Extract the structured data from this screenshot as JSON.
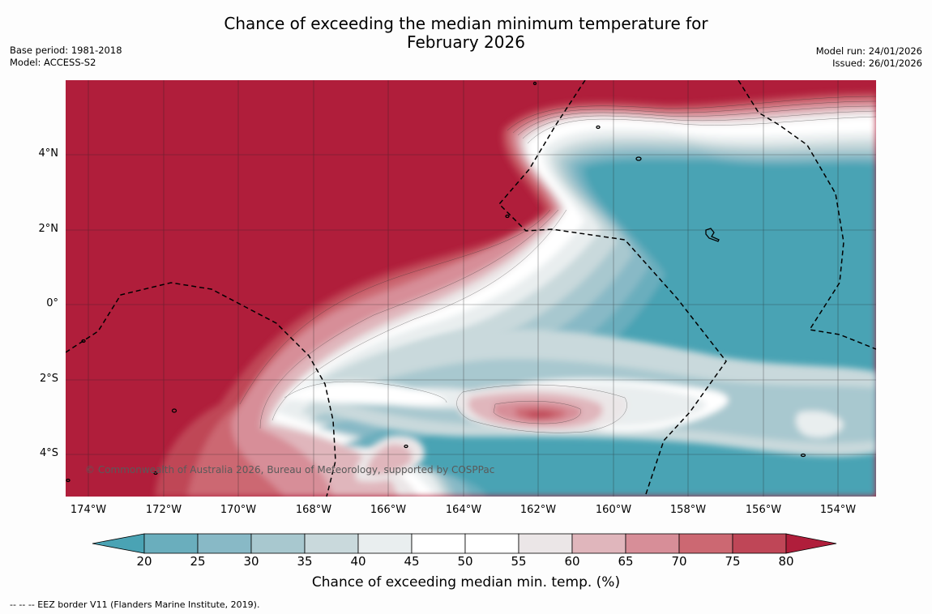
{
  "title": {
    "line1": "Chance of exceeding the median minimum temperature for",
    "line2": "February 2026"
  },
  "meta_left": {
    "base_period": "Base period: 1981-2018",
    "model": "Model: ACCESS-S2"
  },
  "meta_right": {
    "model_run": "Model run: 24/01/2026",
    "issued": "Issued: 26/01/2026"
  },
  "map": {
    "copyright": "© Commonwealth of Australia 2026, Bureau of Meteorology, supported by COSPPac",
    "lat_labels": [
      "4°N",
      "2°N",
      "0°",
      "2°S",
      "4°S"
    ],
    "lon_labels": [
      "174°W",
      "172°W",
      "170°W",
      "168°W",
      "166°W",
      "164°W",
      "162°W",
      "160°W",
      "158°W",
      "156°W",
      "154°W"
    ]
  },
  "colorbar": {
    "ticks": [
      "20",
      "25",
      "30",
      "35",
      "40",
      "45",
      "50",
      "55",
      "60",
      "65",
      "70",
      "75",
      "80"
    ],
    "colors": [
      "#4aa3b4",
      "#6aaebd",
      "#88b9c6",
      "#a8c8cf",
      "#c9d9dc",
      "#e9eeef",
      "#ffffff",
      "#ffffff",
      "#ebe6e7",
      "#e0b6bc",
      "#d78e98",
      "#cc6872",
      "#bf4657",
      "#b01e3b"
    ],
    "label": "Chance of exceeding median min. temp. (%)"
  },
  "legend": {
    "text": "--  --  -- EEZ border V11 (Flanders Marine Institute, 2019)."
  }
}
